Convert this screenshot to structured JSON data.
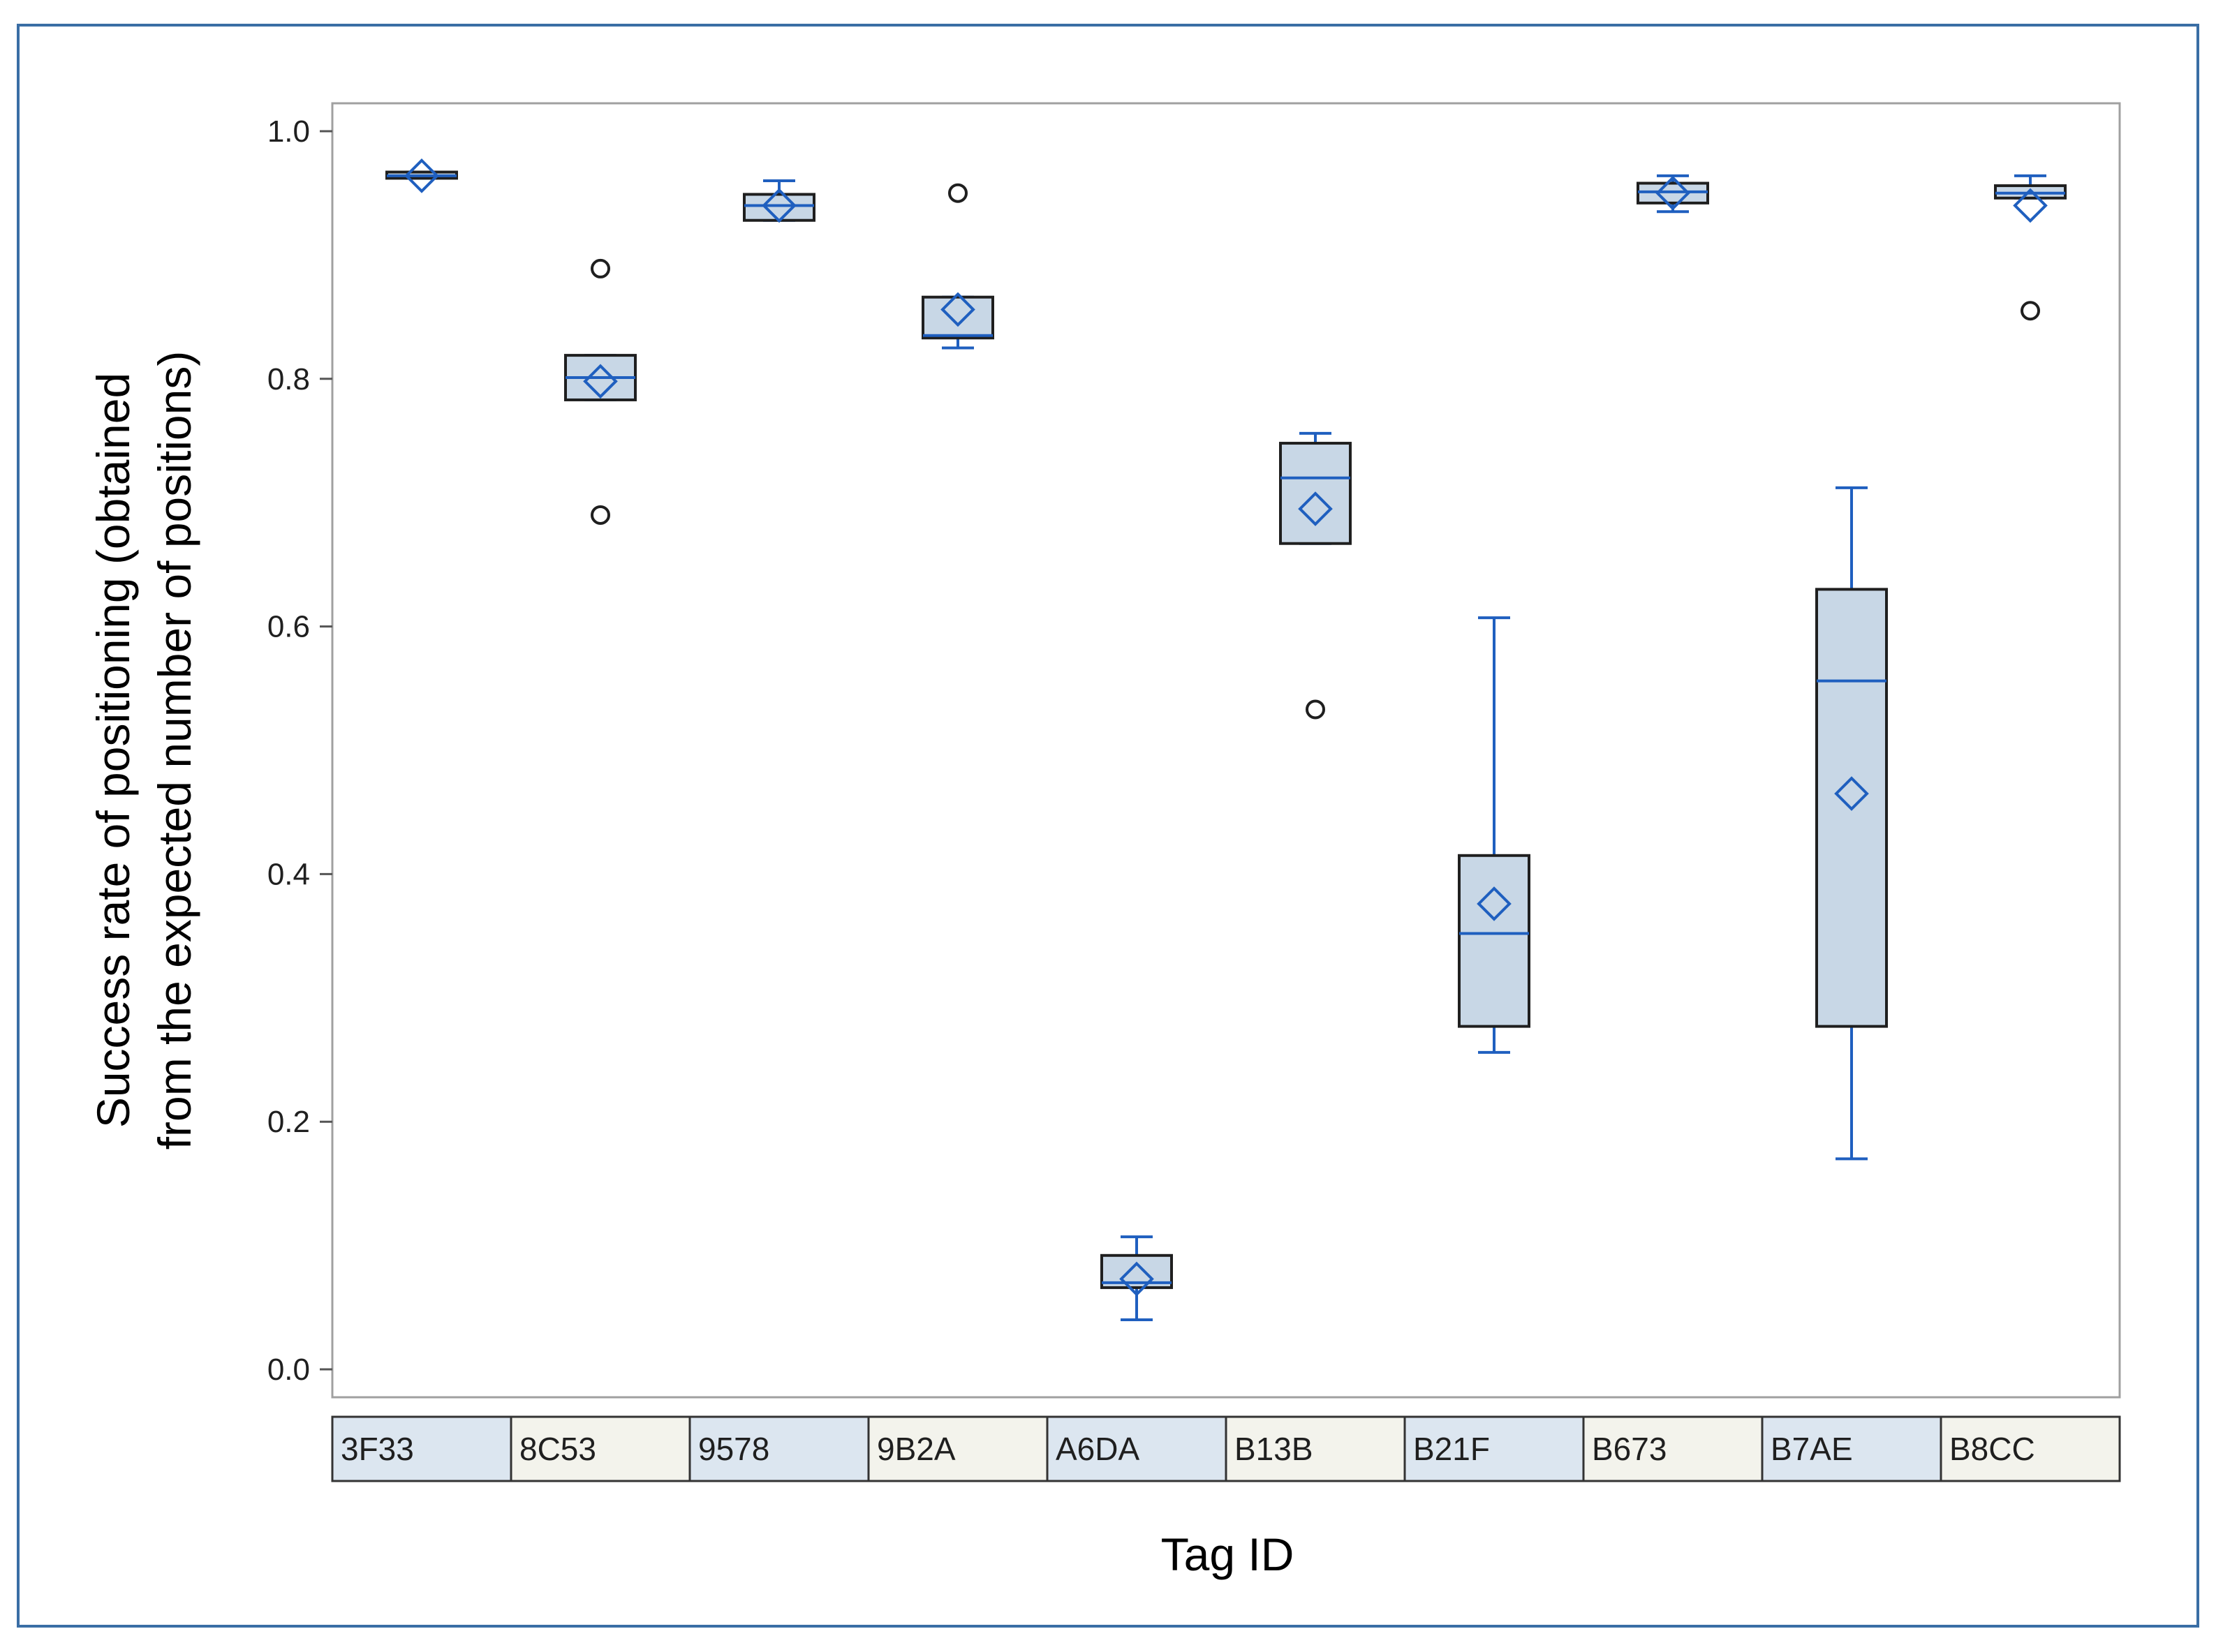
{
  "chart_data": {
    "type": "box",
    "title": "",
    "xlabel": "Tag ID",
    "ylabel_line1": "Success rate of positioning (obtained",
    "ylabel_line2": "from the expected number of positions)",
    "ylim": [
      0.0,
      1.0
    ],
    "yticks": [
      "0.0",
      "0.2",
      "0.4",
      "0.6",
      "0.8",
      "1.0"
    ],
    "grid": false,
    "categories": [
      "3F33",
      "8C53",
      "9578",
      "9B2A",
      "A6DA",
      "B13B",
      "B21F",
      "B673",
      "B7AE",
      "B8CC"
    ],
    "boxes": [
      {
        "category": "3F33",
        "whisker_low": 0.962,
        "q1": 0.962,
        "median": 0.964,
        "q3": 0.967,
        "whisker_high": 0.967,
        "mean": 0.964,
        "outliers": []
      },
      {
        "category": "8C53",
        "whisker_low": 0.783,
        "q1": 0.783,
        "median": 0.801,
        "q3": 0.819,
        "whisker_high": 0.819,
        "mean": 0.798,
        "outliers": [
          0.889,
          0.69
        ]
      },
      {
        "category": "9578",
        "whisker_low": 0.928,
        "q1": 0.928,
        "median": 0.94,
        "q3": 0.949,
        "whisker_high": 0.96,
        "mean": 0.94,
        "outliers": []
      },
      {
        "category": "9B2A",
        "whisker_low": 0.825,
        "q1": 0.833,
        "median": 0.835,
        "q3": 0.866,
        "whisker_high": 0.866,
        "mean": 0.856,
        "outliers": [
          0.95
        ]
      },
      {
        "category": "A6DA",
        "whisker_low": 0.04,
        "q1": 0.066,
        "median": 0.07,
        "q3": 0.092,
        "whisker_high": 0.107,
        "mean": 0.073,
        "outliers": []
      },
      {
        "category": "B13B",
        "whisker_low": 0.667,
        "q1": 0.667,
        "median": 0.72,
        "q3": 0.748,
        "whisker_high": 0.756,
        "mean": 0.695,
        "outliers": [
          0.533
        ]
      },
      {
        "category": "B21F",
        "whisker_low": 0.256,
        "q1": 0.277,
        "median": 0.352,
        "q3": 0.415,
        "whisker_high": 0.607,
        "mean": 0.376,
        "outliers": []
      },
      {
        "category": "B673",
        "whisker_low": 0.935,
        "q1": 0.942,
        "median": 0.951,
        "q3": 0.958,
        "whisker_high": 0.964,
        "mean": 0.95,
        "outliers": []
      },
      {
        "category": "B7AE",
        "whisker_low": 0.17,
        "q1": 0.277,
        "median": 0.556,
        "q3": 0.63,
        "whisker_high": 0.712,
        "mean": 0.465,
        "outliers": []
      },
      {
        "category": "B8CC",
        "whisker_low": 0.946,
        "q1": 0.946,
        "median": 0.95,
        "q3": 0.956,
        "whisker_high": 0.964,
        "mean": 0.94,
        "outliers": [
          0.855
        ]
      }
    ],
    "colors": {
      "box_fill": "#c8d7e6",
      "box_edge": "#1f1f1f",
      "median": "#1f5fbf",
      "whisker": "#1f5fbf",
      "mean_marker": "#1f5fbf",
      "outlier": "#1f1f1f",
      "table_odd": "#dce6f0",
      "table_even": "#f3f3ec",
      "frame": "#3a6ea5",
      "plot_border": "#a0a0a0"
    }
  }
}
